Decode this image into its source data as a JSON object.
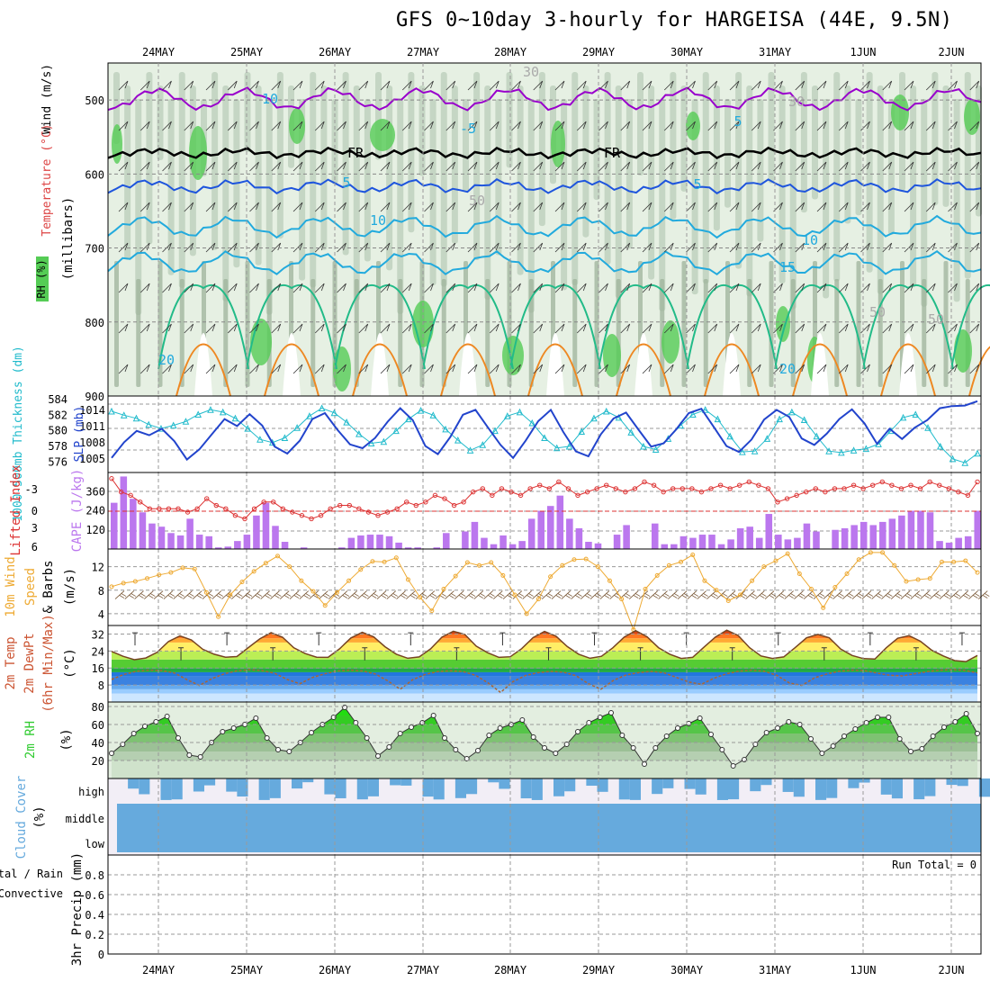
{
  "title": "GFS 0~10day 3-hourly for HARGEISA (44E, 9.5N)",
  "colors": {
    "rh_light": "#e6f0e3",
    "rh_mid": "#bdd0bb",
    "rh_dark": "#9eb39b",
    "rh_green": "#55cc55",
    "temp_purple": "#9900cc",
    "temp_blue": "#1e55dd",
    "temp_cyan": "#22aadd",
    "temp_teal": "#22bbaa",
    "temp_green": "#22bb88",
    "temp_orange": "#ee8822",
    "slp": "#2244cc",
    "thickness": "#22bbcc",
    "cape": "#bb77ee",
    "lifted": "#dd3333",
    "wind10": "#eeaa33",
    "barb": "#775533",
    "cloud": "#66aadd",
    "rh2m": "#33cc33"
  },
  "chart_data": [
    {
      "type": "heatmap",
      "panel": "vertical-profile",
      "ylabel_parts": [
        "RH (%)",
        "Temperature (°C)",
        "Wind (m/s)"
      ],
      "ylabel_units": "(millibars)",
      "y_ticks": [
        500,
        600,
        700,
        800,
        900
      ],
      "ylim": [
        450,
        900
      ],
      "x_ticks_top": [
        "24MAY",
        "25MAY",
        "26MAY",
        "27MAY",
        "28MAY",
        "29MAY",
        "30MAY",
        "31MAY",
        "1JUN",
        "2JUN"
      ],
      "contour_labels": [
        "10",
        "30",
        "-5",
        "5",
        "FR",
        "FR",
        "5",
        "5",
        "10",
        "50",
        "10",
        "15",
        "50",
        "20",
        "20",
        "30",
        "50"
      ],
      "isotherms_c": [
        -5,
        0,
        5,
        10,
        15,
        20,
        25,
        30
      ]
    },
    {
      "type": "line",
      "panel": "slp-thickness",
      "ylabel_left": "1000-500mb Thickness (dm)",
      "ylabel_right": "SLP (mb)",
      "left_ticks": [
        576,
        578,
        580,
        582,
        584
      ],
      "right_ticks": [
        1005,
        1008,
        1011,
        1014
      ],
      "series": [
        {
          "name": "SLP",
          "values": [
            1005.2,
            1008.1,
            1010.2,
            1009.4,
            1010.6,
            1008.3,
            1004.9,
            1006.8,
            1009.6,
            1012.4,
            1011.1,
            1013.3,
            1011.2,
            1007.3,
            1006.0,
            1008.4,
            1012.4,
            1013.5,
            1010.4,
            1007.7,
            1007.0,
            1008.9,
            1011.9,
            1014.4,
            1012.2,
            1007.4,
            1005.9,
            1009.1,
            1013.2,
            1014.1,
            1010.8,
            1007.6,
            1005.2,
            1008.4,
            1012.0,
            1014.1,
            1010.0,
            1006.4,
            1005.5,
            1009.6,
            1012.5,
            1013.6,
            1010.4,
            1007.3,
            1007.9,
            1010.5,
            1013.5,
            1014.3,
            1010.9,
            1007.4,
            1006.3,
            1008.6,
            1012.3,
            1014.1,
            1012.8,
            1008.8,
            1007.6,
            1009.7,
            1012.4,
            1014.2,
            1011.6,
            1007.8,
            1010.6,
            1008.7,
            1010.8,
            1012.2,
            1014.4,
            1014.8,
            1014.9,
            1015.7
          ]
        },
        {
          "name": "Thickness",
          "values": [
            582.5,
            582.0,
            581.6,
            580.8,
            580.3,
            580.7,
            581.2,
            582.1,
            582.7,
            582.4,
            581.6,
            580.3,
            578.9,
            578.5,
            579.1,
            580.4,
            581.9,
            582.9,
            582.3,
            581.1,
            579.6,
            578.4,
            578.6,
            580.0,
            581.5,
            582.6,
            582.0,
            580.2,
            578.8,
            577.5,
            578.2,
            580.0,
            581.9,
            582.4,
            581.0,
            579.1,
            577.8,
            578.0,
            579.9,
            581.6,
            582.5,
            581.7,
            579.8,
            578.0,
            577.6,
            579.0,
            580.7,
            582.1,
            582.7,
            581.5,
            579.3,
            577.3,
            577.4,
            579.0,
            581.5,
            582.4,
            581.4,
            579.3,
            577.4,
            577.2,
            577.5,
            577.7,
            578.3,
            580.0,
            581.7,
            582.1,
            580.4,
            578.0,
            576.4,
            575.9,
            577.1
          ]
        }
      ]
    },
    {
      "type": "bar",
      "panel": "cape-lifted-index",
      "ylabel_left": "Lifted Index",
      "ylabel_right": "CAPE (J/kg)",
      "left_ticks": [
        "-3",
        "0",
        "3",
        "6"
      ],
      "right_ticks": [
        120,
        240,
        360
      ],
      "series": [
        {
          "name": "CAPE",
          "values": [
            290,
            455,
            315,
            230,
            160,
            140,
            100,
            85,
            190,
            90,
            80,
            10,
            15,
            50,
            90,
            210,
            290,
            145,
            45,
            0,
            10,
            0,
            0,
            0,
            10,
            70,
            85,
            90,
            90,
            80,
            40,
            10,
            10,
            0,
            10,
            100,
            0,
            110,
            170,
            70,
            30,
            85,
            30,
            50,
            190,
            240,
            270,
            335,
            190,
            130,
            45,
            35,
            0,
            90,
            150,
            0,
            0,
            160,
            30,
            30,
            80,
            70,
            90,
            90,
            30,
            60,
            130,
            140,
            70,
            220,
            90,
            60,
            70,
            160,
            110,
            0,
            120,
            130,
            150,
            170,
            150,
            170,
            190,
            210,
            240,
            240,
            230,
            50,
            40,
            70,
            80,
            240
          ]
        },
        {
          "name": "Lifted Index",
          "values": [
            -4.5,
            -2.5,
            -2,
            -1,
            0,
            0,
            0,
            0,
            0.5,
            0,
            -1.5,
            -0.5,
            0,
            1,
            1.5,
            0,
            -1,
            -1,
            0,
            0.5,
            1,
            1.5,
            1,
            0,
            -0.5,
            -0.5,
            0,
            0.5,
            1,
            0.5,
            0,
            -1,
            -0.5,
            -1,
            -2,
            -1.5,
            -0.5,
            -1,
            -2.5,
            -3,
            -2,
            -3,
            -2.5,
            -2,
            -3,
            -3.5,
            -3,
            -4,
            -3,
            -2,
            -2.5,
            -3,
            -3.5,
            -3,
            -2.5,
            -3,
            -4,
            -3.5,
            -2.5,
            -3,
            -3,
            -3,
            -2.5,
            -3,
            -3.5,
            -3,
            -3.5,
            -4,
            -3.5,
            -3,
            -1,
            -1.5,
            -2,
            -2.5,
            -3,
            -2.5,
            -3,
            -3,
            -3.5,
            -3,
            -3.5,
            -4,
            -3.5,
            -3,
            -3.5,
            -3,
            -4,
            -3.5,
            -3,
            -2.5,
            -2,
            -4
          ]
        }
      ]
    },
    {
      "type": "line",
      "panel": "10m-wind",
      "ylabel": "10m Wind Speed & Barbs (m/s)",
      "ylabel_parts": [
        "10m Wind",
        "Speed",
        "& Barbs",
        "(m/s)"
      ],
      "y_ticks": [
        4,
        8,
        12
      ],
      "ylim": [
        2,
        15
      ],
      "series": [
        {
          "name": "Wind Speed",
          "values": [
            8.6,
            9.2,
            9.5,
            10.0,
            10.6,
            11.0,
            11.8,
            11.6,
            7.6,
            3.5,
            7.2,
            9.4,
            11.2,
            12.6,
            13.8,
            12.0,
            9.6,
            7.8,
            5.4,
            7.6,
            9.6,
            11.5,
            12.9,
            12.8,
            13.5,
            9.8,
            6.8,
            4.5,
            8.2,
            10.4,
            12.7,
            12.2,
            12.7,
            10.5,
            7.2,
            4.0,
            6.5,
            10.3,
            12.2,
            13.2,
            13.3,
            12.0,
            9.6,
            6.5,
            1.3,
            8.2,
            10.5,
            12.2,
            12.8,
            14.0,
            9.6,
            8.0,
            6.2,
            7.2,
            9.6,
            12.0,
            13.0,
            14.2,
            10.8,
            8.2,
            5.0,
            8.5,
            10.8,
            13.2,
            14.4,
            14.4,
            12.2,
            9.5,
            9.8,
            10.0,
            12.8,
            12.8,
            13.0,
            11.0
          ]
        }
      ]
    },
    {
      "type": "area",
      "panel": "2m-temp",
      "ylabel": "2m Temp 2m DewPt (6hr Min/Max) (°C)",
      "ylabel_parts": [
        "2m Temp",
        "2m DewPt",
        "(6hr Min/Max)",
        "(°C)"
      ],
      "y_ticks": [
        8,
        16,
        24,
        32
      ],
      "ylim": [
        0,
        36
      ],
      "series": [
        {
          "name": "2m Temp",
          "values": [
            23.8,
            21.5,
            19.9,
            20.7,
            23.4,
            28.5,
            31.1,
            29.2,
            24.8,
            22.5,
            21.1,
            21.4,
            25.6,
            29.7,
            32.6,
            30.5,
            25.5,
            22.8,
            21.1,
            21.0,
            25.0,
            30.1,
            32.8,
            30.7,
            26.0,
            22.5,
            20.6,
            21.2,
            25.0,
            30.6,
            33.3,
            31.8,
            26.3,
            23.2,
            21.0,
            21.3,
            25.1,
            30.3,
            33.2,
            31.0,
            26.1,
            22.5,
            20.6,
            21.5,
            25.5,
            30.6,
            33.6,
            30.7,
            25.6,
            22.5,
            20.5,
            21.0,
            25.8,
            30.6,
            33.8,
            31.3,
            25.6,
            21.7,
            20.5,
            21.2,
            25.6,
            30.2,
            31.8,
            30.2,
            24.9,
            21.9,
            20.4,
            20.2,
            25.5,
            30.0,
            31.2,
            28.6,
            24.3,
            21.7,
            19.5,
            19.0,
            21.9
          ]
        },
        {
          "name": "2m DewPt",
          "values": [
            10.6,
            13.0,
            14.5,
            15.0,
            14.8,
            13.7,
            10.5,
            7.8,
            11.0,
            13.3,
            14.7,
            15.2,
            14.8,
            13.5,
            10.6,
            8.6,
            11.5,
            13.3,
            14.6,
            15.0,
            14.6,
            13.2,
            10.0,
            6.0,
            10.5,
            13.0,
            14.3,
            14.7,
            14.3,
            12.6,
            9.0,
            4.5,
            9.6,
            12.5,
            13.8,
            14.4,
            14.0,
            12.4,
            8.6,
            6.0,
            10.2,
            12.7,
            13.8,
            14.4,
            13.8,
            11.6,
            9.4,
            8.3,
            11.2,
            13.3,
            14.5,
            15.0,
            14.5,
            12.6,
            9.0,
            7.8,
            11.3,
            13.2,
            14.5,
            15.0,
            14.8,
            13.6,
            12.6,
            12.3,
            13.3,
            14.3,
            15.0,
            15.2,
            14.9,
            13.7
          ]
        }
      ]
    },
    {
      "type": "area",
      "panel": "2m-rh",
      "ylabel": "2m RH (%)",
      "y_ticks": [
        20,
        40,
        60,
        80
      ],
      "ylim": [
        0,
        80
      ],
      "series": [
        {
          "name": "2m RH",
          "values": [
            28,
            38,
            50,
            58,
            63,
            69,
            45,
            26,
            24,
            40,
            52,
            56,
            60,
            67,
            45,
            32,
            30,
            40,
            51,
            60,
            68,
            79,
            62,
            45,
            25,
            35,
            50,
            57,
            62,
            70,
            45,
            32,
            22,
            31,
            48,
            56,
            60,
            65,
            46,
            34,
            28,
            38,
            52,
            62,
            68,
            73,
            48,
            34,
            16,
            34,
            47,
            56,
            61,
            67,
            49,
            32,
            14,
            21,
            38,
            51,
            56,
            63,
            60,
            44,
            28,
            36,
            47,
            55,
            62,
            68,
            68,
            44,
            30,
            33,
            47,
            57,
            63,
            72,
            50
          ]
        }
      ]
    },
    {
      "type": "heatmap",
      "panel": "cloud-cover",
      "ylabel": "Cloud Cover (%)",
      "levels": [
        "high",
        "middle",
        "low"
      ]
    },
    {
      "type": "bar",
      "panel": "precip",
      "ylabel_parts": [
        "Total / Rain",
        "Convective",
        "3hr Precip (mm)"
      ],
      "y_ticks": [
        "0",
        "0.2",
        "0.4",
        "0.6",
        "0.8"
      ],
      "ylim": [
        0,
        1
      ],
      "annotation": "Run Total = 0",
      "values": []
    }
  ],
  "x_axis_bottom": [
    "24MAY",
    "25MAY",
    "26MAY",
    "27MAY",
    "28MAY",
    "29MAY",
    "30MAY",
    "31MAY",
    "1JUN",
    "2JUN"
  ]
}
